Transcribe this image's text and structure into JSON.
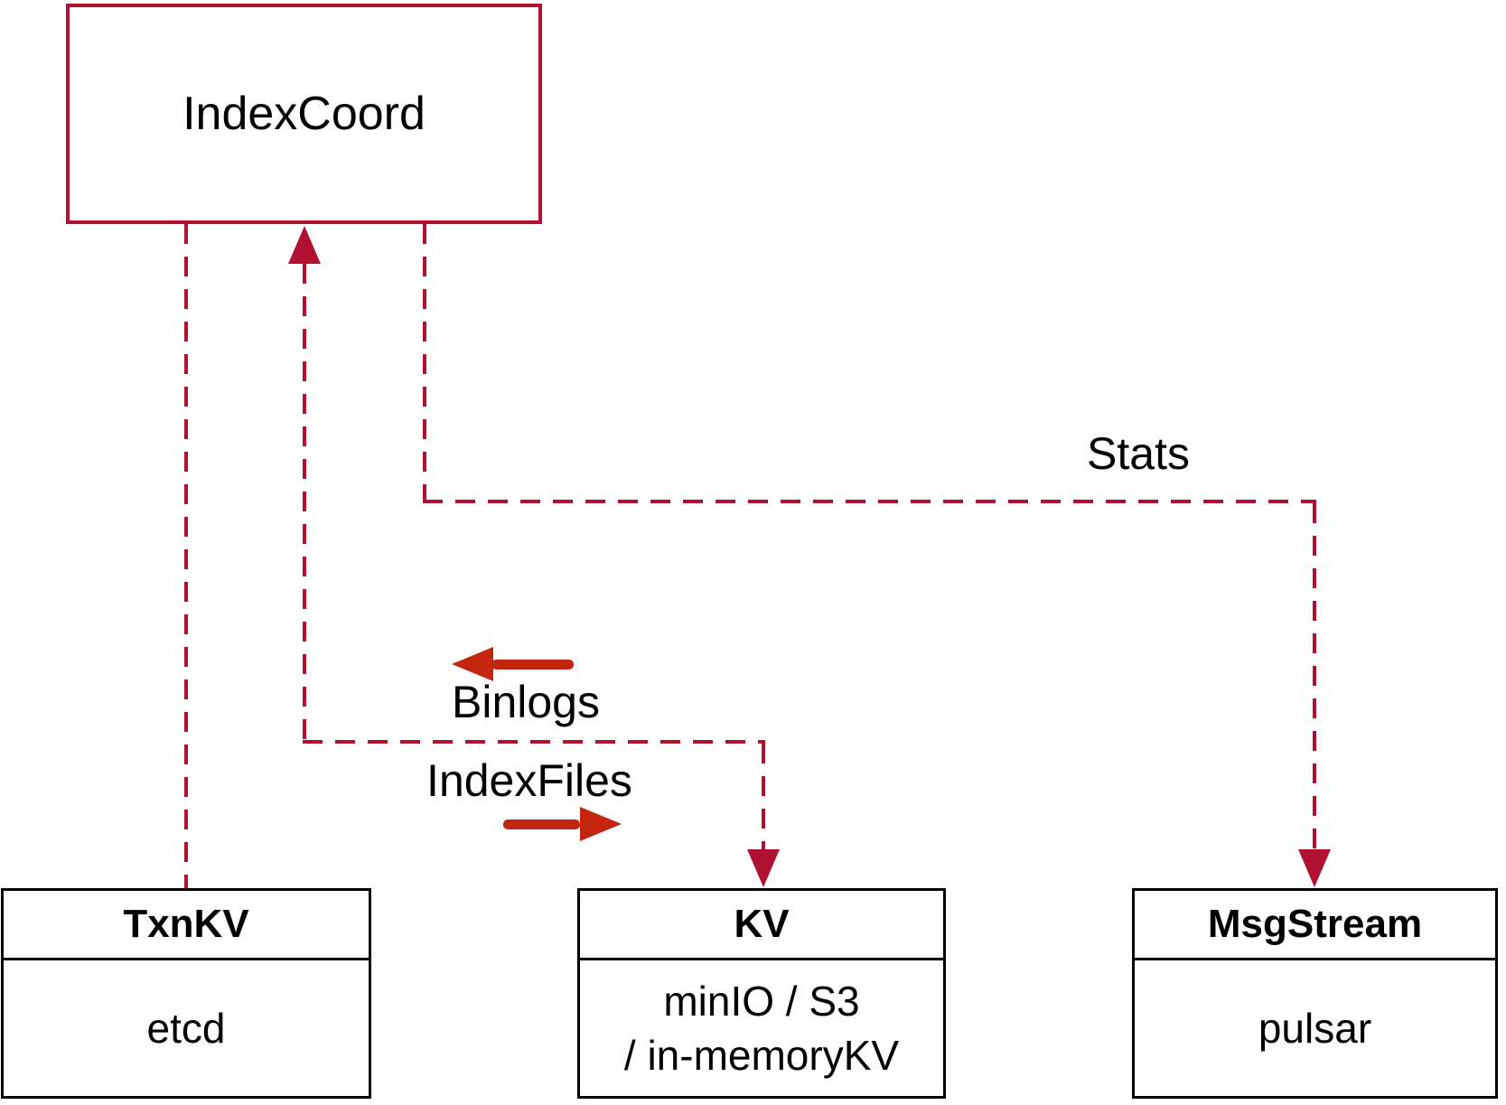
{
  "colors": {
    "line": "#b01130",
    "arrow": "#c3250f",
    "border": "#000000",
    "text": "#000000",
    "background": "#ffffff"
  },
  "nodes": {
    "index_coord": {
      "label": "IndexCoord"
    },
    "txn_kv": {
      "title": "TxnKV",
      "body": "etcd"
    },
    "kv": {
      "title": "KV",
      "body_line1": "minIO / S3",
      "body_line2": "/ in-memoryKV"
    },
    "msg_stream": {
      "title": "MsgStream",
      "body": "pulsar"
    }
  },
  "edges": {
    "stats": {
      "label": "Stats"
    },
    "binlogs": {
      "label": "Binlogs"
    },
    "index_files": {
      "label": "IndexFiles"
    }
  }
}
